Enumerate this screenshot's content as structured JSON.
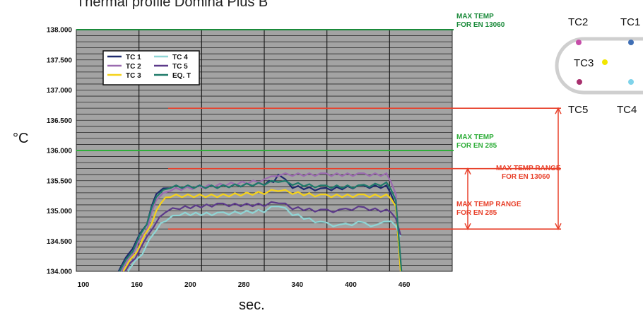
{
  "chart_data": {
    "type": "line",
    "title": "Thermal profile Domina Plus B",
    "xlabel": "sec.",
    "ylabel": "°C",
    "x_ticks": [
      "100",
      "160",
      "200",
      "280",
      "340",
      "400",
      "460"
    ],
    "y_ticks": [
      "134.000",
      "134.500",
      "135.000",
      "135.500",
      "136.000",
      "136.500",
      "137.000",
      "137.500",
      "138.000"
    ],
    "xlim": [
      100,
      500
    ],
    "ylim": [
      134.0,
      138.0
    ],
    "grid": true,
    "legend_position": "top-left",
    "series": [
      {
        "name": "TC 1",
        "color": "#1f2a6e",
        "x": [
          145,
          160,
          175,
          185,
          200,
          250,
          300,
          310,
          315,
          330,
          360,
          400,
          430,
          440,
          445
        ],
        "y": [
          134.0,
          134.4,
          134.8,
          135.3,
          135.4,
          135.4,
          135.45,
          135.5,
          135.6,
          135.4,
          135.35,
          135.4,
          135.4,
          135.1,
          134.0
        ]
      },
      {
        "name": "TC 2",
        "color": "#9b6bb0",
        "x": [
          148,
          160,
          175,
          185,
          200,
          300,
          315,
          330,
          360,
          400,
          430,
          440,
          445
        ],
        "y": [
          134.0,
          134.3,
          134.7,
          135.2,
          135.35,
          135.5,
          135.6,
          135.6,
          135.6,
          135.6,
          135.6,
          135.3,
          134.0
        ]
      },
      {
        "name": "TC 3",
        "color": "#f5d21a",
        "x": [
          150,
          165,
          180,
          190,
          200,
          250,
          300,
          315,
          330,
          360,
          400,
          430,
          440,
          445
        ],
        "y": [
          134.0,
          134.35,
          134.8,
          135.15,
          135.25,
          135.25,
          135.3,
          135.35,
          135.3,
          135.25,
          135.25,
          135.25,
          135.1,
          134.0
        ]
      },
      {
        "name": "TC 4",
        "color": "#8fd6d6",
        "x": [
          155,
          170,
          185,
          195,
          210,
          250,
          300,
          315,
          330,
          360,
          380,
          400,
          420,
          435,
          445
        ],
        "y": [
          134.0,
          134.3,
          134.7,
          134.85,
          134.95,
          134.95,
          135.0,
          135.1,
          134.95,
          134.8,
          134.75,
          134.8,
          134.75,
          134.85,
          134.6
        ]
      },
      {
        "name": "TC 5",
        "color": "#5c3a8a",
        "x": [
          152,
          168,
          182,
          195,
          210,
          250,
          300,
          315,
          330,
          360,
          380,
          400,
          430,
          440,
          445
        ],
        "y": [
          134.0,
          134.35,
          134.75,
          135.0,
          135.05,
          135.1,
          135.1,
          135.15,
          135.05,
          135.0,
          135.0,
          135.05,
          135.0,
          134.9,
          134.6
        ]
      },
      {
        "name": "EQ. T",
        "color": "#1f7a6a",
        "x": [
          146,
          160,
          175,
          185,
          200,
          250,
          300,
          315,
          330,
          360,
          400,
          430,
          440,
          446
        ],
        "y": [
          134.0,
          134.35,
          134.8,
          135.25,
          135.4,
          135.4,
          135.45,
          135.5,
          135.45,
          135.4,
          135.4,
          135.45,
          135.2,
          134.0
        ]
      }
    ],
    "reference_lines": [
      {
        "label": "MAX TEMP\nFOR EN 13060",
        "value": 138.0,
        "color": "#1a8a3a"
      },
      {
        "label": "MAX TEMP\nFOR EN 285",
        "value": 136.0,
        "color": "#2fae3a"
      },
      {
        "label": "",
        "value": 136.7,
        "color": "#e8402a"
      },
      {
        "label": "",
        "value": 135.7,
        "color": "#e8402a"
      },
      {
        "label": "",
        "value": 134.7,
        "color": "#e8402a"
      }
    ],
    "range_annotations": [
      {
        "label": "MAX TEMP RANGE\nFOR EN 13060",
        "from": 134.7,
        "to": 136.7,
        "color": "#e8402a"
      },
      {
        "label": "MAX TEMP RANGE\nFOR EN 285",
        "from": 134.7,
        "to": 135.7,
        "color": "#e8402a"
      }
    ],
    "probe_diagram": {
      "labels": [
        "TC2",
        "TC1",
        "TC3",
        "TC5",
        "TC4"
      ],
      "colors": {
        "TC1": "#3f6fb5",
        "TC2": "#c64ca8",
        "TC3": "#f2e600",
        "TC4": "#7fd3ea",
        "TC5": "#a8306e"
      }
    }
  }
}
